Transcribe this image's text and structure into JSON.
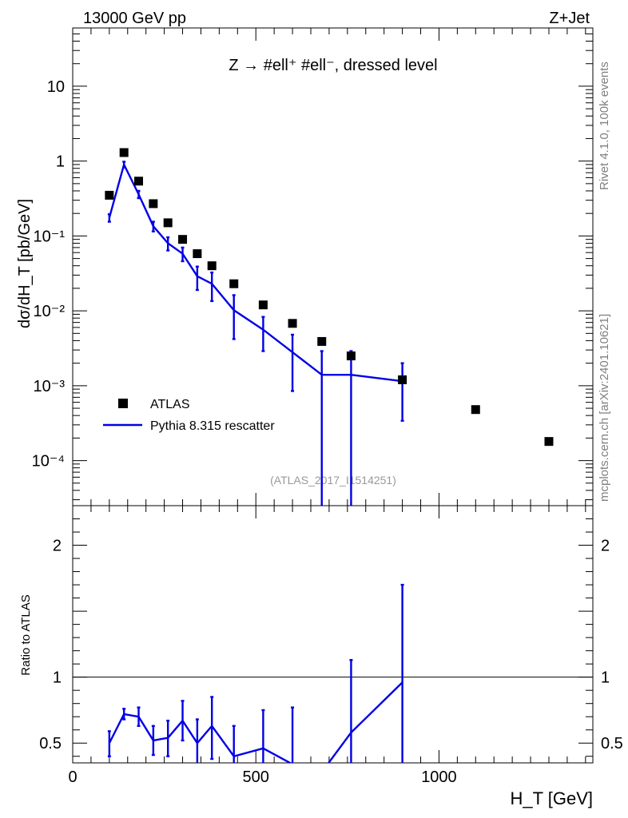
{
  "header": {
    "left_label": "13000 GeV pp",
    "right_label": "Z+Jet"
  },
  "side_labels": {
    "rivet": "Rivet 4.1.0,  100k events",
    "mcplots": "mcplots.cern.ch [arXiv:2401.10621]"
  },
  "chart_data": [
    {
      "type": "scatter",
      "panel": "main",
      "title": "Z → #ell⁺ #ell⁻, dressed level",
      "ylabel": "dσ/dH_T [pb/GeV]",
      "yscale": "log",
      "ylim": [
        2.5e-05,
        60
      ],
      "xlim": [
        0,
        1420
      ],
      "watermark": "(ATLAS_2017_I1514251)",
      "y_ticks": [
        {
          "v": 10,
          "label": "10"
        },
        {
          "v": 1,
          "label": "1"
        },
        {
          "v": 0.1,
          "label": "10⁻¹"
        },
        {
          "v": 0.01,
          "label": "10⁻²"
        },
        {
          "v": 0.001,
          "label": "10⁻³"
        },
        {
          "v": 0.0001,
          "label": "10⁻⁴"
        }
      ],
      "legend": {
        "placement": "lower-left",
        "entries": [
          "ATLAS",
          "Pythia 8.315 rescatter"
        ]
      },
      "series": [
        {
          "name": "ATLAS",
          "style": "markers",
          "color": "#000000",
          "x": [
            100,
            140,
            180,
            220,
            260,
            300,
            340,
            380,
            440,
            520,
            600,
            680,
            760,
            900,
            1100,
            1300
          ],
          "y": [
            0.35,
            1.3,
            0.54,
            0.27,
            0.15,
            0.09,
            0.058,
            0.04,
            0.023,
            0.012,
            0.0068,
            0.0039,
            0.0025,
            0.0012,
            0.00048,
            0.00018
          ]
        },
        {
          "name": "Pythia 8.315 rescatter",
          "style": "line",
          "color": "#0000e6",
          "x": [
            100,
            140,
            180,
            220,
            260,
            300,
            340,
            380,
            440,
            520,
            600,
            680,
            760,
            900
          ],
          "y": [
            0.175,
            0.9,
            0.36,
            0.135,
            0.08,
            0.058,
            0.029,
            0.023,
            0.0102,
            0.0056,
            0.0028,
            0.0014,
            0.0014,
            0.00115
          ],
          "err_low": [
            0.155,
            0.82,
            0.32,
            0.115,
            0.064,
            0.046,
            0.019,
            0.0135,
            0.0042,
            0.0029,
            0.00085,
            1e-06,
            1e-06,
            0.00034
          ],
          "err_high": [
            0.195,
            0.98,
            0.4,
            0.155,
            0.096,
            0.07,
            0.039,
            0.0325,
            0.0162,
            0.0083,
            0.0048,
            0.0029,
            0.0029,
            0.002
          ]
        }
      ]
    },
    {
      "type": "line",
      "panel": "ratio",
      "ylabel": "Ratio to ATLAS",
      "xlabel": "H_T [GeV]",
      "ylim": [
        0.35,
        2.3
      ],
      "xlim": [
        0,
        1420
      ],
      "x_ticks": [
        0,
        500,
        1000
      ],
      "y_ticks": [
        0.5,
        1,
        2
      ],
      "reference_line": 1,
      "series": [
        {
          "name": "Pythia 8.315 rescatter",
          "color": "#0000e6",
          "x": [
            100,
            140,
            180,
            220,
            260,
            300,
            340,
            380,
            440,
            520,
            600,
            680,
            760,
            900
          ],
          "y": [
            0.5,
            0.72,
            0.7,
            0.52,
            0.54,
            0.67,
            0.5,
            0.63,
            0.4,
            0.46,
            0.34,
            0.28,
            0.58,
            0.96
          ],
          "err_low": [
            0.4,
            0.68,
            0.63,
            0.41,
            0.4,
            0.52,
            0.32,
            0.38,
            0.3,
            0.3,
            0.3,
            0.3,
            0.3,
            0.3
          ],
          "err_high": [
            0.59,
            0.76,
            0.77,
            0.63,
            0.67,
            0.82,
            0.68,
            0.85,
            0.63,
            0.75,
            0.77,
            0.3,
            1.13,
            1.7
          ]
        }
      ]
    }
  ]
}
